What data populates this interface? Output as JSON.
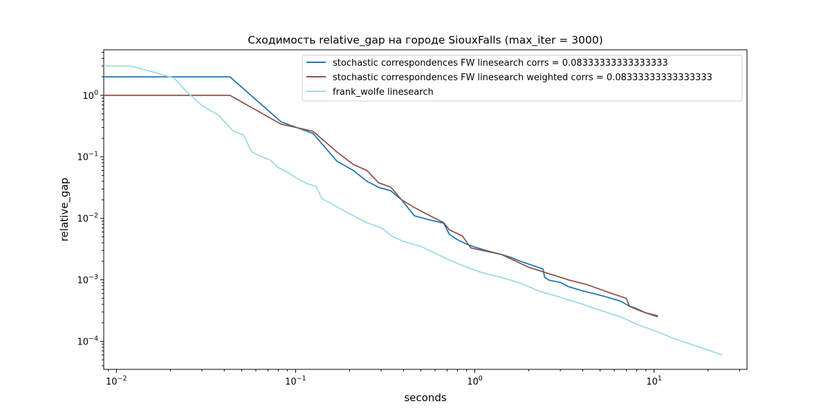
{
  "chart_data": {
    "type": "line",
    "title": "Сходимость relative_gap на городе SiouxFalls  (max_iter = 3000)",
    "xlabel": "seconds",
    "ylabel": "relative_gap",
    "xscale": "log",
    "yscale": "log",
    "xlim": [
      0.0085,
      33
    ],
    "ylim": [
      3.5e-05,
      5.5
    ],
    "legend_position": "upper-right",
    "grid": false,
    "xticks": [
      {
        "value": 0.01,
        "base": "10",
        "exp": "−2"
      },
      {
        "value": 0.1,
        "base": "10",
        "exp": "−1"
      },
      {
        "value": 1,
        "base": "10",
        "exp": "0"
      },
      {
        "value": 10,
        "base": "10",
        "exp": "1"
      }
    ],
    "yticks": [
      {
        "value": 0.0001,
        "base": "10",
        "exp": "−4"
      },
      {
        "value": 0.001,
        "base": "10",
        "exp": "−3"
      },
      {
        "value": 0.01,
        "base": "10",
        "exp": "−2"
      },
      {
        "value": 0.1,
        "base": "10",
        "exp": "−1"
      },
      {
        "value": 1,
        "base": "10",
        "exp": "0"
      }
    ],
    "series": [
      {
        "name": "stochastic correspondences FW linesearch corrs = 0.08333333333333333",
        "color": "#1f77b4",
        "x": [
          0.0085,
          0.043,
          0.083,
          0.125,
          0.17,
          0.21,
          0.25,
          0.29,
          0.34,
          0.39,
          0.46,
          0.53,
          0.67,
          0.72,
          0.8,
          0.9,
          1.0,
          1.2,
          1.4,
          1.6,
          1.8,
          2.0,
          2.4,
          2.45,
          2.6,
          3.0,
          3.3,
          4.0,
          4.8,
          5.5,
          6.5,
          7.2,
          8.0,
          9.0,
          10.5
        ],
        "y": [
          2.0,
          2.0,
          0.37,
          0.24,
          0.085,
          0.06,
          0.04,
          0.032,
          0.028,
          0.02,
          0.011,
          0.0098,
          0.0083,
          0.0055,
          0.0045,
          0.0038,
          0.0034,
          0.0029,
          0.0026,
          0.0023,
          0.002,
          0.0018,
          0.0015,
          0.0011,
          0.00098,
          0.00091,
          0.00078,
          0.00066,
          0.00058,
          0.00052,
          0.00045,
          0.00038,
          0.00034,
          0.00029,
          0.00025
        ]
      },
      {
        "name": "stochastic correspondences FW linesearch weighted corrs = 0.08333333333333333",
        "color": "#8c564b",
        "x": [
          0.0085,
          0.043,
          0.083,
          0.125,
          0.17,
          0.21,
          0.25,
          0.29,
          0.34,
          0.39,
          0.46,
          0.53,
          0.67,
          0.72,
          0.85,
          0.95,
          1.1,
          1.4,
          1.7,
          2.0,
          2.5,
          3.0,
          3.4,
          4.2,
          5.0,
          6.0,
          7.0,
          7.3,
          8.0,
          9.0,
          10.5
        ],
        "y": [
          1.0,
          1.0,
          0.34,
          0.26,
          0.12,
          0.075,
          0.06,
          0.038,
          0.032,
          0.02,
          0.015,
          0.012,
          0.0085,
          0.0065,
          0.0052,
          0.0033,
          0.003,
          0.0026,
          0.002,
          0.0016,
          0.0013,
          0.0011,
          0.00098,
          0.00084,
          0.0007,
          0.00058,
          0.0005,
          0.00037,
          0.00033,
          0.00029,
          0.00026
        ]
      },
      {
        "name": "frank_wolfe linesearch",
        "color": "#9edae5",
        "x": [
          0.0085,
          0.012,
          0.016,
          0.021,
          0.025,
          0.03,
          0.037,
          0.045,
          0.051,
          0.057,
          0.065,
          0.072,
          0.08,
          0.09,
          0.1,
          0.115,
          0.13,
          0.14,
          0.16,
          0.18,
          0.21,
          0.25,
          0.3,
          0.35,
          0.4,
          0.5,
          0.6,
          0.75,
          0.9,
          1.1,
          1.4,
          1.8,
          2.3,
          3.0,
          4.0,
          5.0,
          6.5,
          8.0,
          10.0,
          13.0,
          16.0,
          20.0,
          24.0
        ],
        "y": [
          3.0,
          3.0,
          2.4,
          1.9,
          1.1,
          0.68,
          0.48,
          0.26,
          0.23,
          0.12,
          0.1,
          0.089,
          0.067,
          0.056,
          0.046,
          0.037,
          0.033,
          0.021,
          0.017,
          0.014,
          0.011,
          0.0085,
          0.007,
          0.005,
          0.0042,
          0.0035,
          0.0027,
          0.002,
          0.0016,
          0.0013,
          0.0011,
          0.00088,
          0.00065,
          0.00052,
          0.0004,
          0.00032,
          0.00025,
          0.00019,
          0.00015,
          0.00011,
          9e-05,
          7.2e-05,
          6e-05
        ]
      }
    ]
  }
}
